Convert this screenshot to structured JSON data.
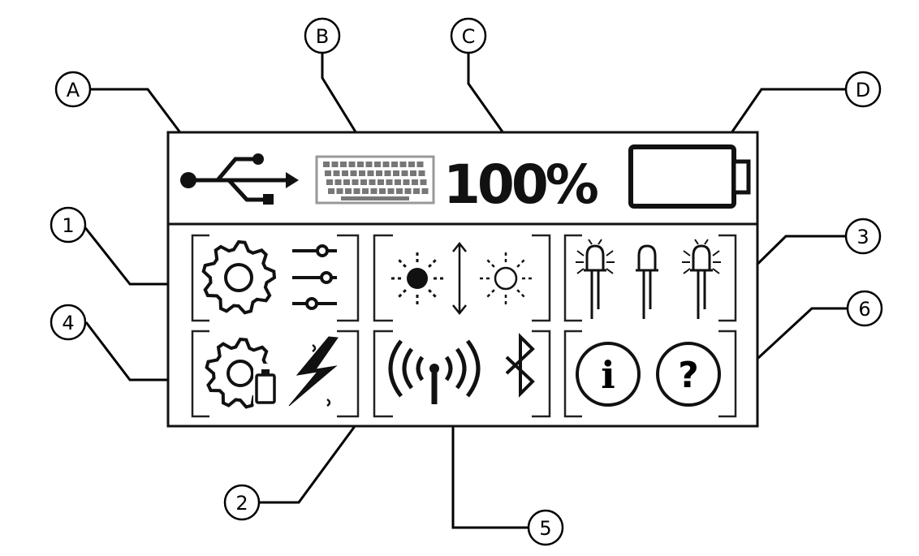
{
  "callouts": {
    "a": "A",
    "b": "B",
    "c": "C",
    "d": "D",
    "n1": "1",
    "n2": "2",
    "n3": "3",
    "n4": "4",
    "n5": "5",
    "n6": "6"
  },
  "status_bar": {
    "battery_percent": "100%",
    "icons": [
      "usb-icon",
      "keyboard-icon",
      "battery-icon"
    ]
  },
  "menu": {
    "tiles": [
      {
        "icons": [
          "gear-icon",
          "sliders-icon"
        ]
      },
      {
        "icons": [
          "brightness-high-icon",
          "up-down-arrow-icon",
          "brightness-low-icon"
        ]
      },
      {
        "icons": [
          "led-on-icon",
          "led-off-icon",
          "led-on-icon"
        ]
      },
      {
        "icons": [
          "gear-battery-icon",
          "lightning-icon"
        ]
      },
      {
        "icons": [
          "wireless-antenna-icon",
          "bluetooth-icon"
        ]
      },
      {
        "icons": [
          "info-icon",
          "help-icon"
        ],
        "help_glyph": "?",
        "info_glyph": "i"
      }
    ]
  }
}
